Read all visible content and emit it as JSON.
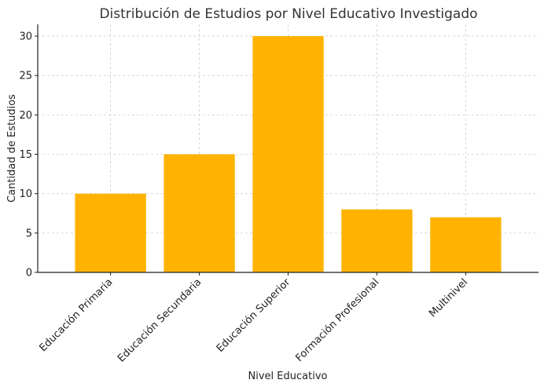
{
  "chart_data": {
    "type": "bar",
    "title": "Distribución de Estudios por Nivel Educativo Investigado",
    "xlabel": "Nivel Educativo",
    "ylabel": "Cantidad de Estudios",
    "categories": [
      "Educación Primaria",
      "Educación Secundaria",
      "Educación Superior",
      "Formación Profesional",
      "Multinivel"
    ],
    "values": [
      10,
      15,
      30,
      8,
      7
    ],
    "ylim": [
      0,
      31.5
    ],
    "yticks": [
      0,
      5,
      10,
      15,
      20,
      25,
      30
    ],
    "grid": true,
    "bar_color": "#FFB300"
  }
}
